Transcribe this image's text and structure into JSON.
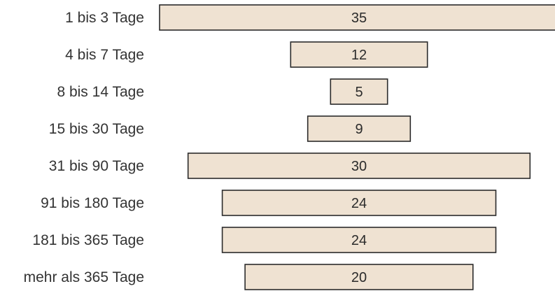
{
  "chart_data": {
    "type": "bar",
    "orientation": "horizontal-centered",
    "categories": [
      "1 bis 3 Tage",
      "4 bis 7 Tage",
      "8 bis 14 Tage",
      "15 bis 30 Tage",
      "31 bis 90 Tage",
      "91 bis 180 Tage",
      "181 bis 365 Tage",
      "mehr als 365 Tage"
    ],
    "values": [
      35,
      12,
      5,
      9,
      30,
      24,
      24,
      20
    ],
    "value_labels": [
      "35",
      "12",
      "5",
      "9",
      "30",
      "24",
      "24",
      "20"
    ],
    "title": "",
    "xlabel": "",
    "ylabel": "",
    "xlim": [
      0,
      35
    ],
    "grid": false,
    "legend": "none"
  },
  "colors": {
    "bar_fill": "#efe2d2",
    "bar_stroke": "#2b2b2b",
    "label_text": "#333333",
    "value_text": "#2b2b2b",
    "background": "#ffffff"
  }
}
